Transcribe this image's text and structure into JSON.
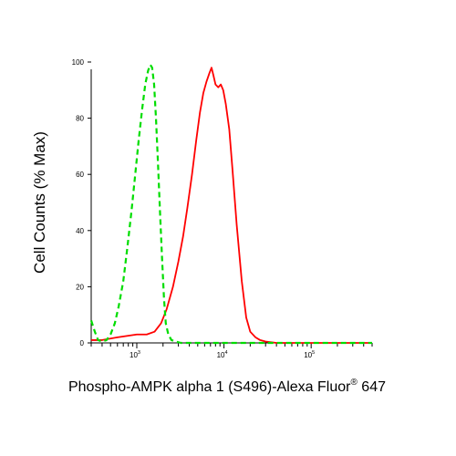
{
  "chart_data": {
    "type": "line",
    "title": "",
    "xlabel": "Phospho-AMPK alpha 1 (S496)-Alexa Fluor",
    "xlabel_superscript": "®",
    "xlabel_suffix": " 647",
    "ylabel": "Cell Counts (% Max)",
    "x_scale": "log",
    "xlim": [
      300,
      500000
    ],
    "ylim": [
      0,
      100
    ],
    "y_ticks": [
      0,
      20,
      40,
      60,
      80,
      100
    ],
    "x_tick_labels": [
      {
        "base": "10",
        "exp": "3",
        "value": 1000
      },
      {
        "base": "10",
        "exp": "4",
        "value": 10000
      },
      {
        "base": "10",
        "exp": "5",
        "value": 100000
      }
    ],
    "grid": false,
    "legend": "none",
    "series": [
      {
        "color": "#ff0000",
        "style": "solid",
        "x": [
          300,
          400,
          600,
          1000,
          1300,
          1600,
          1900,
          2200,
          2600,
          3000,
          3400,
          3800,
          4300,
          4800,
          5300,
          5800,
          6300,
          6800,
          7200,
          7600,
          8000,
          8600,
          9200,
          9800,
          10500,
          11500,
          12500,
          14000,
          16000,
          18000,
          20000,
          23000,
          26000,
          30000,
          40000,
          100000,
          300000,
          500000
        ],
        "values": [
          1,
          1,
          2,
          3,
          3,
          4,
          7,
          12,
          20,
          29,
          38,
          48,
          60,
          72,
          82,
          89,
          93,
          96,
          98,
          95,
          92,
          91,
          92,
          90,
          85,
          76,
          62,
          42,
          22,
          9,
          4,
          2,
          1,
          0.5,
          0,
          0,
          0,
          0
        ]
      },
      {
        "color": "#00dd00",
        "style": "dashed",
        "x": [
          300,
          330,
          360,
          400,
          450,
          500,
          560,
          620,
          700,
          780,
          870,
          960,
          1050,
          1150,
          1250,
          1350,
          1430,
          1500,
          1580,
          1660,
          1750,
          1850,
          1950,
          2050,
          2150,
          2300,
          2500,
          2800,
          3200,
          4000,
          10000,
          500000
        ],
        "values": [
          8,
          4,
          1,
          0.5,
          1,
          3,
          7,
          13,
          22,
          34,
          47,
          60,
          72,
          83,
          92,
          97,
          99,
          98,
          92,
          80,
          64,
          46,
          30,
          16,
          7,
          3,
          1,
          0.5,
          0,
          0,
          0,
          0
        ]
      }
    ]
  }
}
